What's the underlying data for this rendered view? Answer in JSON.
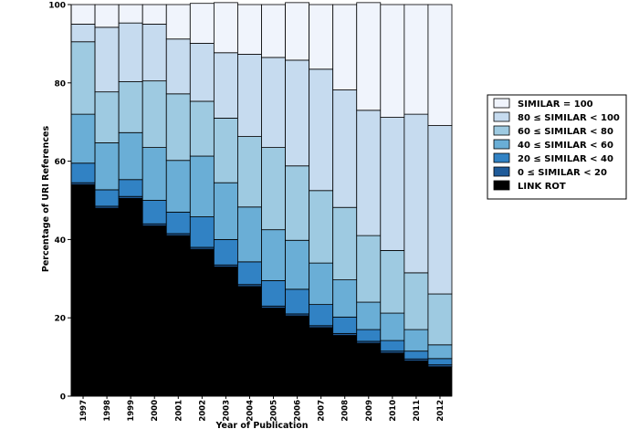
{
  "chart_data": {
    "type": "bar",
    "stacked": true,
    "title": "",
    "xlabel": "Year of Publication",
    "ylabel": "Percentage of URI References",
    "ylim": [
      0,
      100
    ],
    "yticks": [
      0,
      20,
      40,
      60,
      80,
      100
    ],
    "grid": false,
    "legend_position": "right",
    "categories": [
      "1997",
      "1998",
      "1999",
      "2000",
      "2001",
      "2002",
      "2003",
      "2004",
      "2005",
      "2006",
      "2007",
      "2008",
      "2009",
      "2010",
      "2011",
      "2012"
    ],
    "series": [
      {
        "name": "LINK ROT",
        "color": "#000000",
        "values": [
          54,
          48,
          50.5,
          43.5,
          41,
          37.5,
          33,
          28,
          22.5,
          20.5,
          17.5,
          15.5,
          13.5,
          11,
          9,
          7.5
        ]
      },
      {
        "name": "0 ≤ SIMILAR < 20",
        "color": "#1f5b99",
        "values": [
          0.5,
          0.5,
          0.5,
          0.5,
          0.5,
          0.5,
          0.5,
          0.5,
          0.5,
          0.5,
          0.5,
          0.5,
          0.5,
          0.5,
          0.5,
          0.5
        ]
      },
      {
        "name": "20 ≤ SIMILAR < 40",
        "color": "#3182c4",
        "values": [
          5,
          4.2,
          4.3,
          6,
          5.5,
          7.8,
          6.5,
          5.8,
          6.5,
          6.3,
          5.4,
          4.2,
          3,
          2.7,
          2,
          1.6
        ]
      },
      {
        "name": "40 ≤ SIMILAR < 60",
        "color": "#6aaed6",
        "values": [
          12.5,
          12,
          12,
          13.5,
          13.2,
          15.5,
          14.5,
          14,
          13,
          12.5,
          10.6,
          9.5,
          7,
          7,
          5.5,
          3.5
        ]
      },
      {
        "name": "60 ≤ SIMILAR < 80",
        "color": "#9ecae1",
        "values": [
          18.5,
          13,
          13,
          17,
          17,
          14,
          16.5,
          18,
          21,
          19,
          18.5,
          18.5,
          17,
          16,
          14.5,
          13
        ]
      },
      {
        "name": "80 ≤ SIMILAR < 100",
        "color": "#c6dbef",
        "values": [
          4.5,
          16.5,
          15,
          14.5,
          14,
          14.8,
          16.7,
          21,
          23,
          27,
          31,
          30,
          32,
          34,
          40.5,
          43
        ]
      },
      {
        "name": "SIMILAR = 100",
        "color": "#f0f4fc",
        "values": [
          5,
          5.8,
          4.7,
          5,
          8.8,
          10.2,
          12.8,
          12.7,
          13.5,
          14.7,
          16.5,
          21.8,
          27.5,
          28.8,
          28,
          30.9
        ]
      }
    ],
    "legend_order": [
      "SIMILAR = 100",
      "80 ≤ SIMILAR < 100",
      "60 ≤ SIMILAR < 80",
      "40 ≤ SIMILAR < 60",
      "20 ≤ SIMILAR < 40",
      "0 ≤ SIMILAR < 20",
      "LINK ROT"
    ]
  }
}
